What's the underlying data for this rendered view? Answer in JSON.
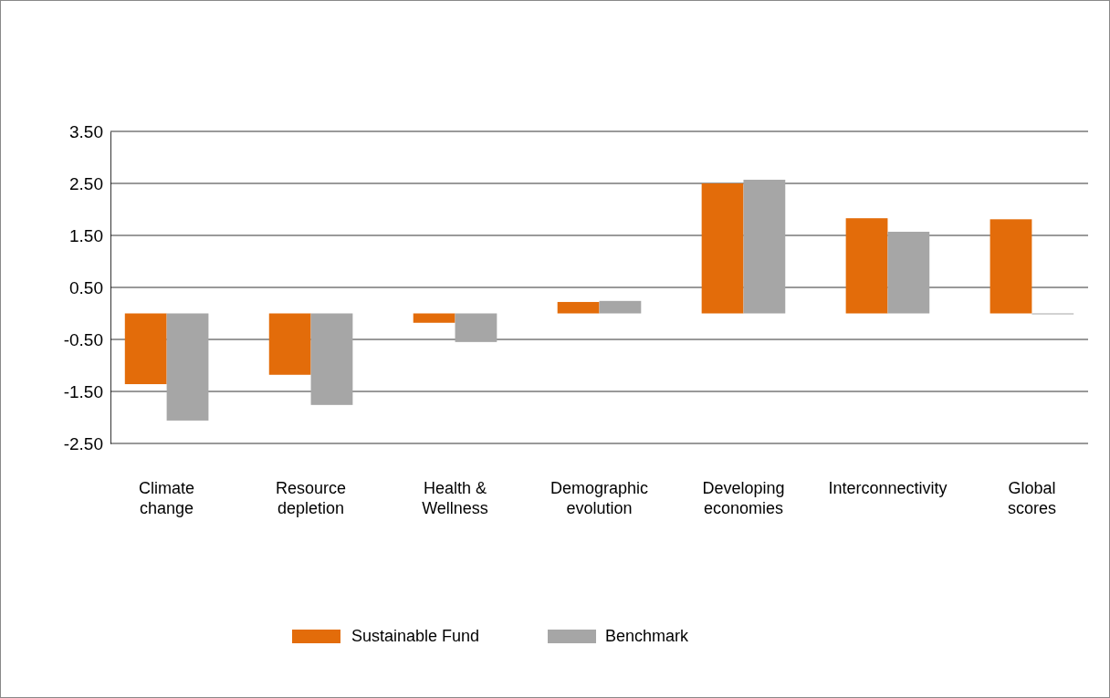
{
  "chart_data": {
    "type": "bar",
    "categories": [
      "Climate change",
      "Resource depletion",
      "Health & Wellness",
      "Demographic evolution",
      "Developing economies",
      "Interconnectivity",
      "Global scores"
    ],
    "series": [
      {
        "name": "Sustainable Fund",
        "color": "#e36c0a",
        "values": [
          -1.36,
          -1.18,
          -0.18,
          0.22,
          2.5,
          1.83,
          1.81
        ]
      },
      {
        "name": "Benchmark",
        "color": "#a6a6a6",
        "values": [
          -2.06,
          -1.76,
          -0.55,
          0.24,
          2.57,
          1.57,
          0.0
        ]
      }
    ],
    "ylim": [
      -2.5,
      3.5
    ],
    "yticks": [
      {
        "value": 3.5,
        "label": "3.50"
      },
      {
        "value": 2.5,
        "label": "2.50"
      },
      {
        "value": 1.5,
        "label": "1.50"
      },
      {
        "value": 0.5,
        "label": "0.50"
      },
      {
        "value": -0.5,
        "label": "-0.50"
      },
      {
        "value": -1.5,
        "label": "-1.50"
      },
      {
        "value": -2.5,
        "label": "-2.50"
      }
    ],
    "grid": "y",
    "legend": "bottom"
  }
}
